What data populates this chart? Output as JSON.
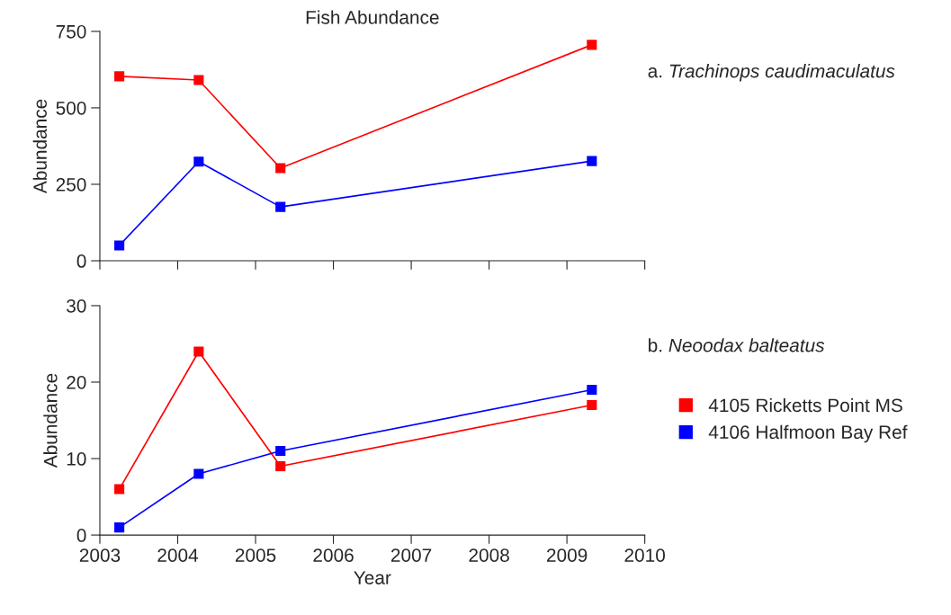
{
  "chart_data": [
    {
      "type": "line",
      "title": "Fish Abundance",
      "ylabel": "Abundance",
      "annotations": [
        "a. Trachinops caudimaculatus"
      ],
      "x": [
        2003.25,
        2004.27,
        2005.32,
        2009.32
      ],
      "series": [
        {
          "color": "#ff0000",
          "values": [
            603,
            591,
            303,
            706
          ]
        },
        {
          "color": "#0000ff",
          "values": [
            50,
            324,
            176,
            326
          ]
        }
      ],
      "xlim": [
        2003,
        2010
      ],
      "xticks": [
        {
          "value": 2003,
          "label": null
        },
        {
          "value": 2004,
          "label": null
        },
        {
          "value": 2005,
          "label": null
        },
        {
          "value": 2006,
          "label": null
        },
        {
          "value": 2007,
          "label": null
        },
        {
          "value": 2008,
          "label": null
        },
        {
          "value": 2009,
          "label": null
        },
        {
          "value": 2010,
          "label": null
        }
      ],
      "ylim": [
        0,
        750
      ],
      "yticks": [
        0,
        250,
        500,
        750
      ],
      "tick_labels": "y",
      "marker": "square",
      "grid": false,
      "legend": false
    },
    {
      "type": "line",
      "xlabel": "Year",
      "ylabel": "Abundance",
      "annotations": [
        "b. Neoodax balteatus"
      ],
      "x": [
        2003.25,
        2004.27,
        2005.32,
        2009.32
      ],
      "series": [
        {
          "name": "4105 Ricketts Point MS",
          "color": "#ff0000",
          "values": [
            6,
            24,
            9,
            17
          ]
        },
        {
          "name": "4106 Halfmoon Bay Ref",
          "color": "#0000ff",
          "values": [
            1,
            8,
            11,
            19
          ]
        }
      ],
      "xlim": [
        2003,
        2010
      ],
      "xticks": [
        2003,
        2004,
        2005,
        2006,
        2007,
        2008,
        2009,
        2010
      ],
      "ylim": [
        0,
        30
      ],
      "yticks": [
        0,
        10,
        20,
        30
      ],
      "marker": "square",
      "grid": false,
      "legend": "right"
    }
  ]
}
